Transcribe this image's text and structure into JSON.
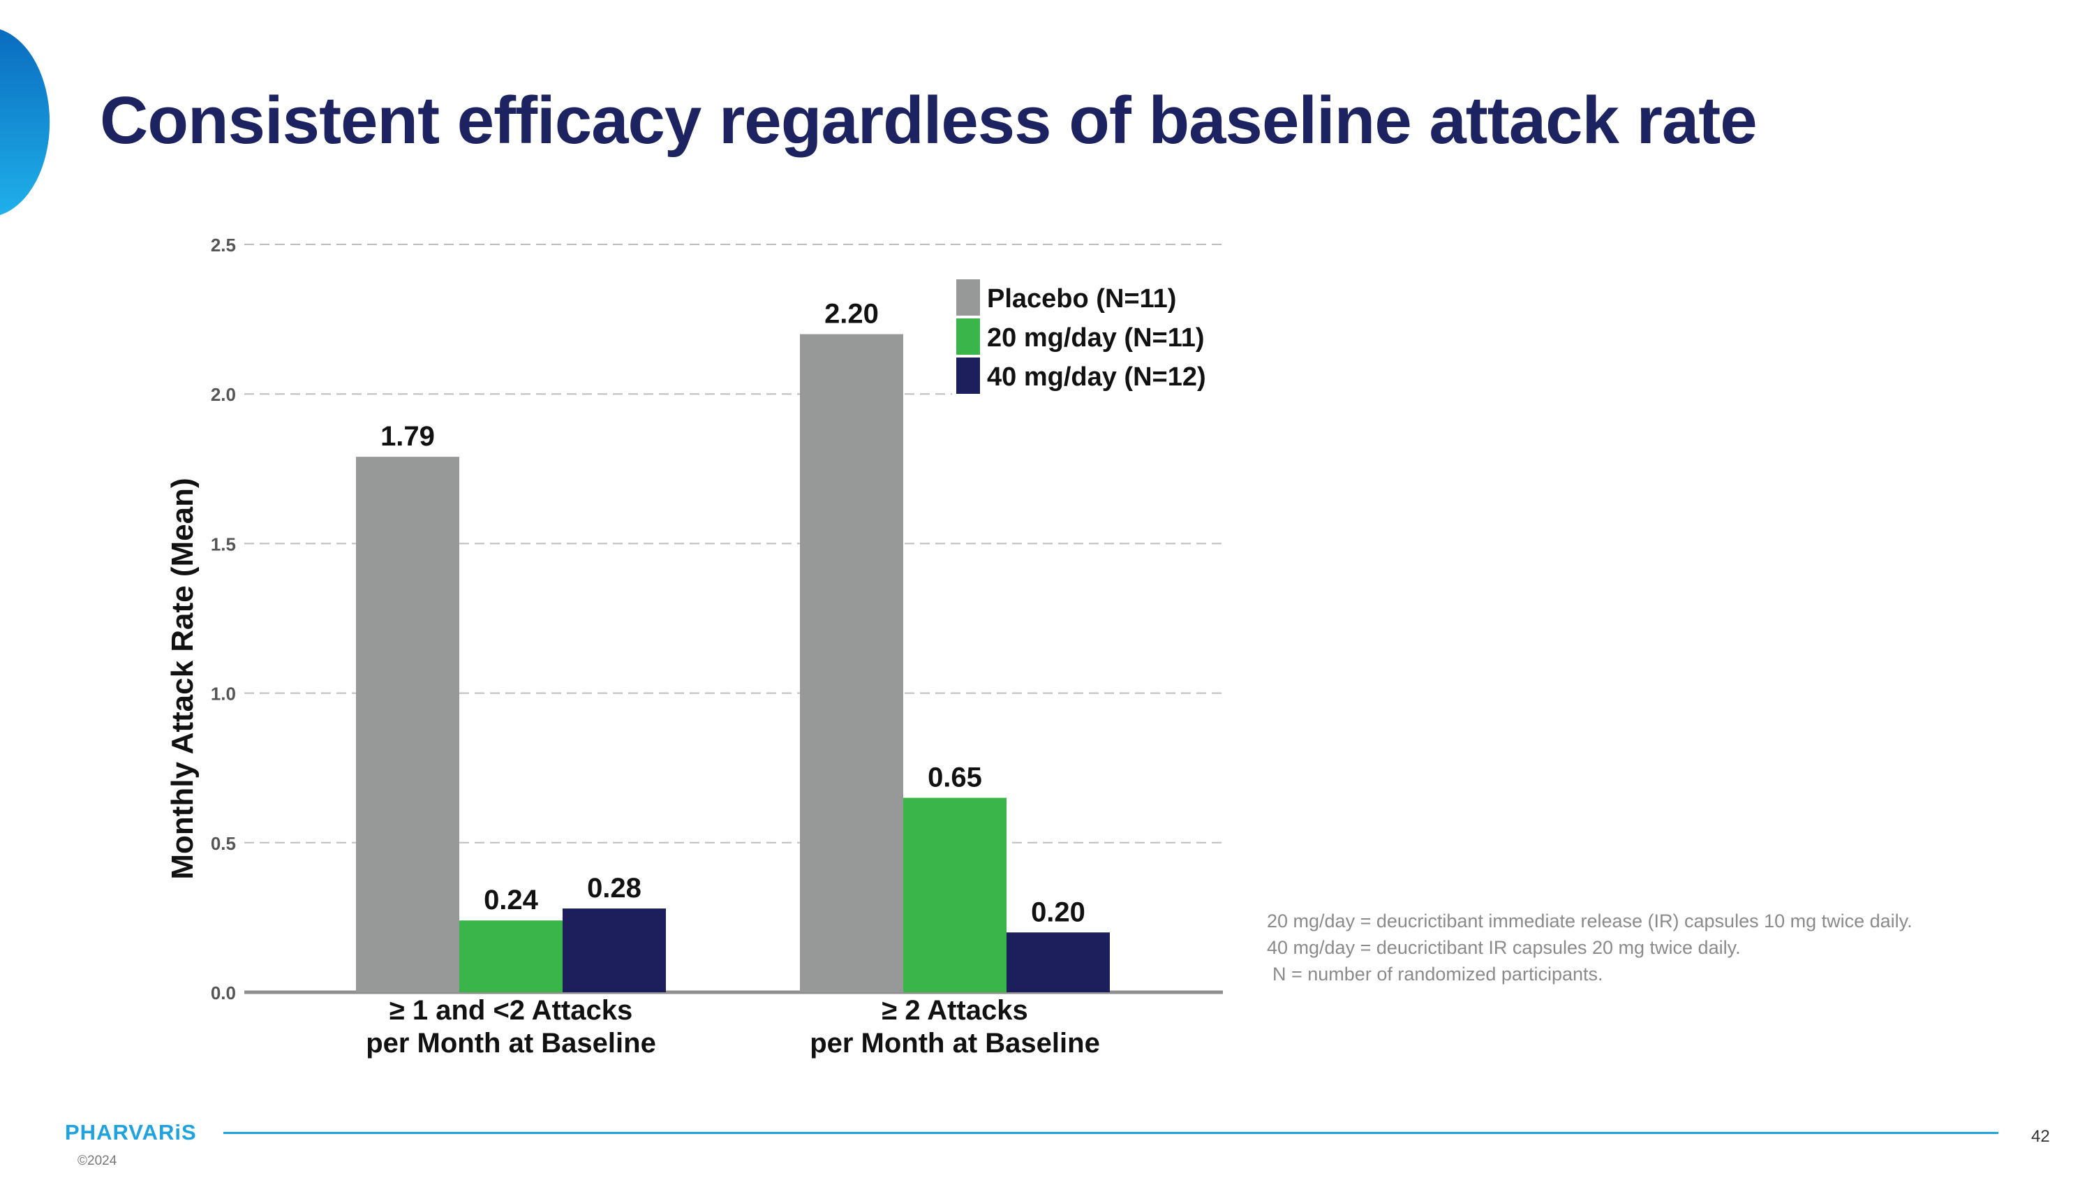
{
  "slide": {
    "title": "Consistent efficacy regardless of baseline attack rate",
    "footnotes": [
      "20 mg/day = deucrictibant immediate release (IR) capsules 10 mg twice daily.",
      "40 mg/day = deucrictibant IR capsules 20 mg twice daily.",
      "N = number of randomized participants."
    ],
    "logo": "PHARVARiS",
    "copyright": "©2024",
    "page_number": "42"
  },
  "colors": {
    "title": "#1c2360",
    "accent": "#1fa2e0",
    "placebo": "#979898",
    "dose20": "#39b54a",
    "dose40": "#1c1f5b"
  },
  "chart_data": {
    "type": "bar",
    "ylabel": "Monthly Attack Rate (Mean)",
    "ylim": [
      0,
      2.5
    ],
    "yticks": [
      "0.0",
      "0.5",
      "1.0",
      "1.5",
      "2.0",
      "2.5"
    ],
    "grid": true,
    "legend_position": "top-right",
    "categories": [
      [
        "≥ 1 and <2 Attacks",
        "per Month at Baseline"
      ],
      [
        "≥ 2 Attacks",
        "per Month at Baseline"
      ]
    ],
    "series": [
      {
        "name": "Placebo (N=11)",
        "color": "#979898",
        "values": [
          1.79,
          2.2
        ],
        "labels": [
          "1.79",
          "2.20"
        ]
      },
      {
        "name": "20 mg/day (N=11)",
        "color": "#39b54a",
        "values": [
          0.24,
          0.65
        ],
        "labels": [
          "0.24",
          "0.65"
        ]
      },
      {
        "name": "40 mg/day (N=12)",
        "color": "#1c1f5b",
        "values": [
          0.28,
          0.2
        ],
        "labels": [
          "0.28",
          "0.20"
        ]
      }
    ]
  }
}
